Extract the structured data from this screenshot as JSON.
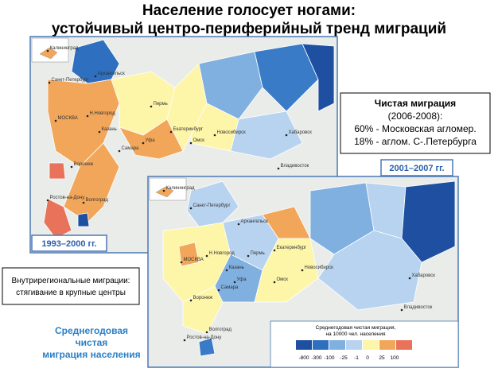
{
  "header": {
    "title_line1": "Население голосует ногами:",
    "title_line2": "устойчивый центро-периферийный тренд миграций"
  },
  "net_migration_box": {
    "title": "Чистая миграция",
    "period": "(2006-2008):",
    "line1": "60% - Московская агломер.",
    "line2": "18% - аглом. С-.Петербурга"
  },
  "map1": {
    "period_label": "1993–2000 гг.",
    "cities": [
      "Калининград",
      "Санкт-Петербург",
      "Архангельск",
      "МОСКВА",
      "Н.Новгород",
      "Пермь",
      "Казань",
      "Екатеринбург",
      "Уфа",
      "Самара",
      "Омск",
      "Новосибирск",
      "Воронеж",
      "Волгоград",
      "Ростов-на-Дону",
      "Хабаровск",
      "Владивосток"
    ]
  },
  "map2": {
    "period_label": "2001–2007 гг.",
    "cities": [
      "Калининград",
      "Санкт-Петербург",
      "Архангельск",
      "МОСКВА",
      "Н.Новгород",
      "Пермь",
      "Казань",
      "Екатеринбург",
      "Уфа",
      "Самара",
      "Омск",
      "Новосибирск",
      "Воронеж",
      "Волгоград",
      "Ростов-на-Дону",
      "Хабаровск",
      "Владивосток"
    ]
  },
  "intraregional_box": {
    "line1": "Внутрирегиональные миграции:",
    "line2": "стягивание в крупные центры"
  },
  "caption": {
    "line1": "Среднегодовая",
    "line2": "чистая",
    "line3": "миграция населения"
  },
  "legend": {
    "title_line1": "Среднегодовая чистая миграция,",
    "title_line2": "на 10000 чел. населения",
    "ticks": [
      "-800",
      "-300",
      "-100",
      "-25",
      "-1",
      "0",
      "25",
      "100"
    ]
  }
}
